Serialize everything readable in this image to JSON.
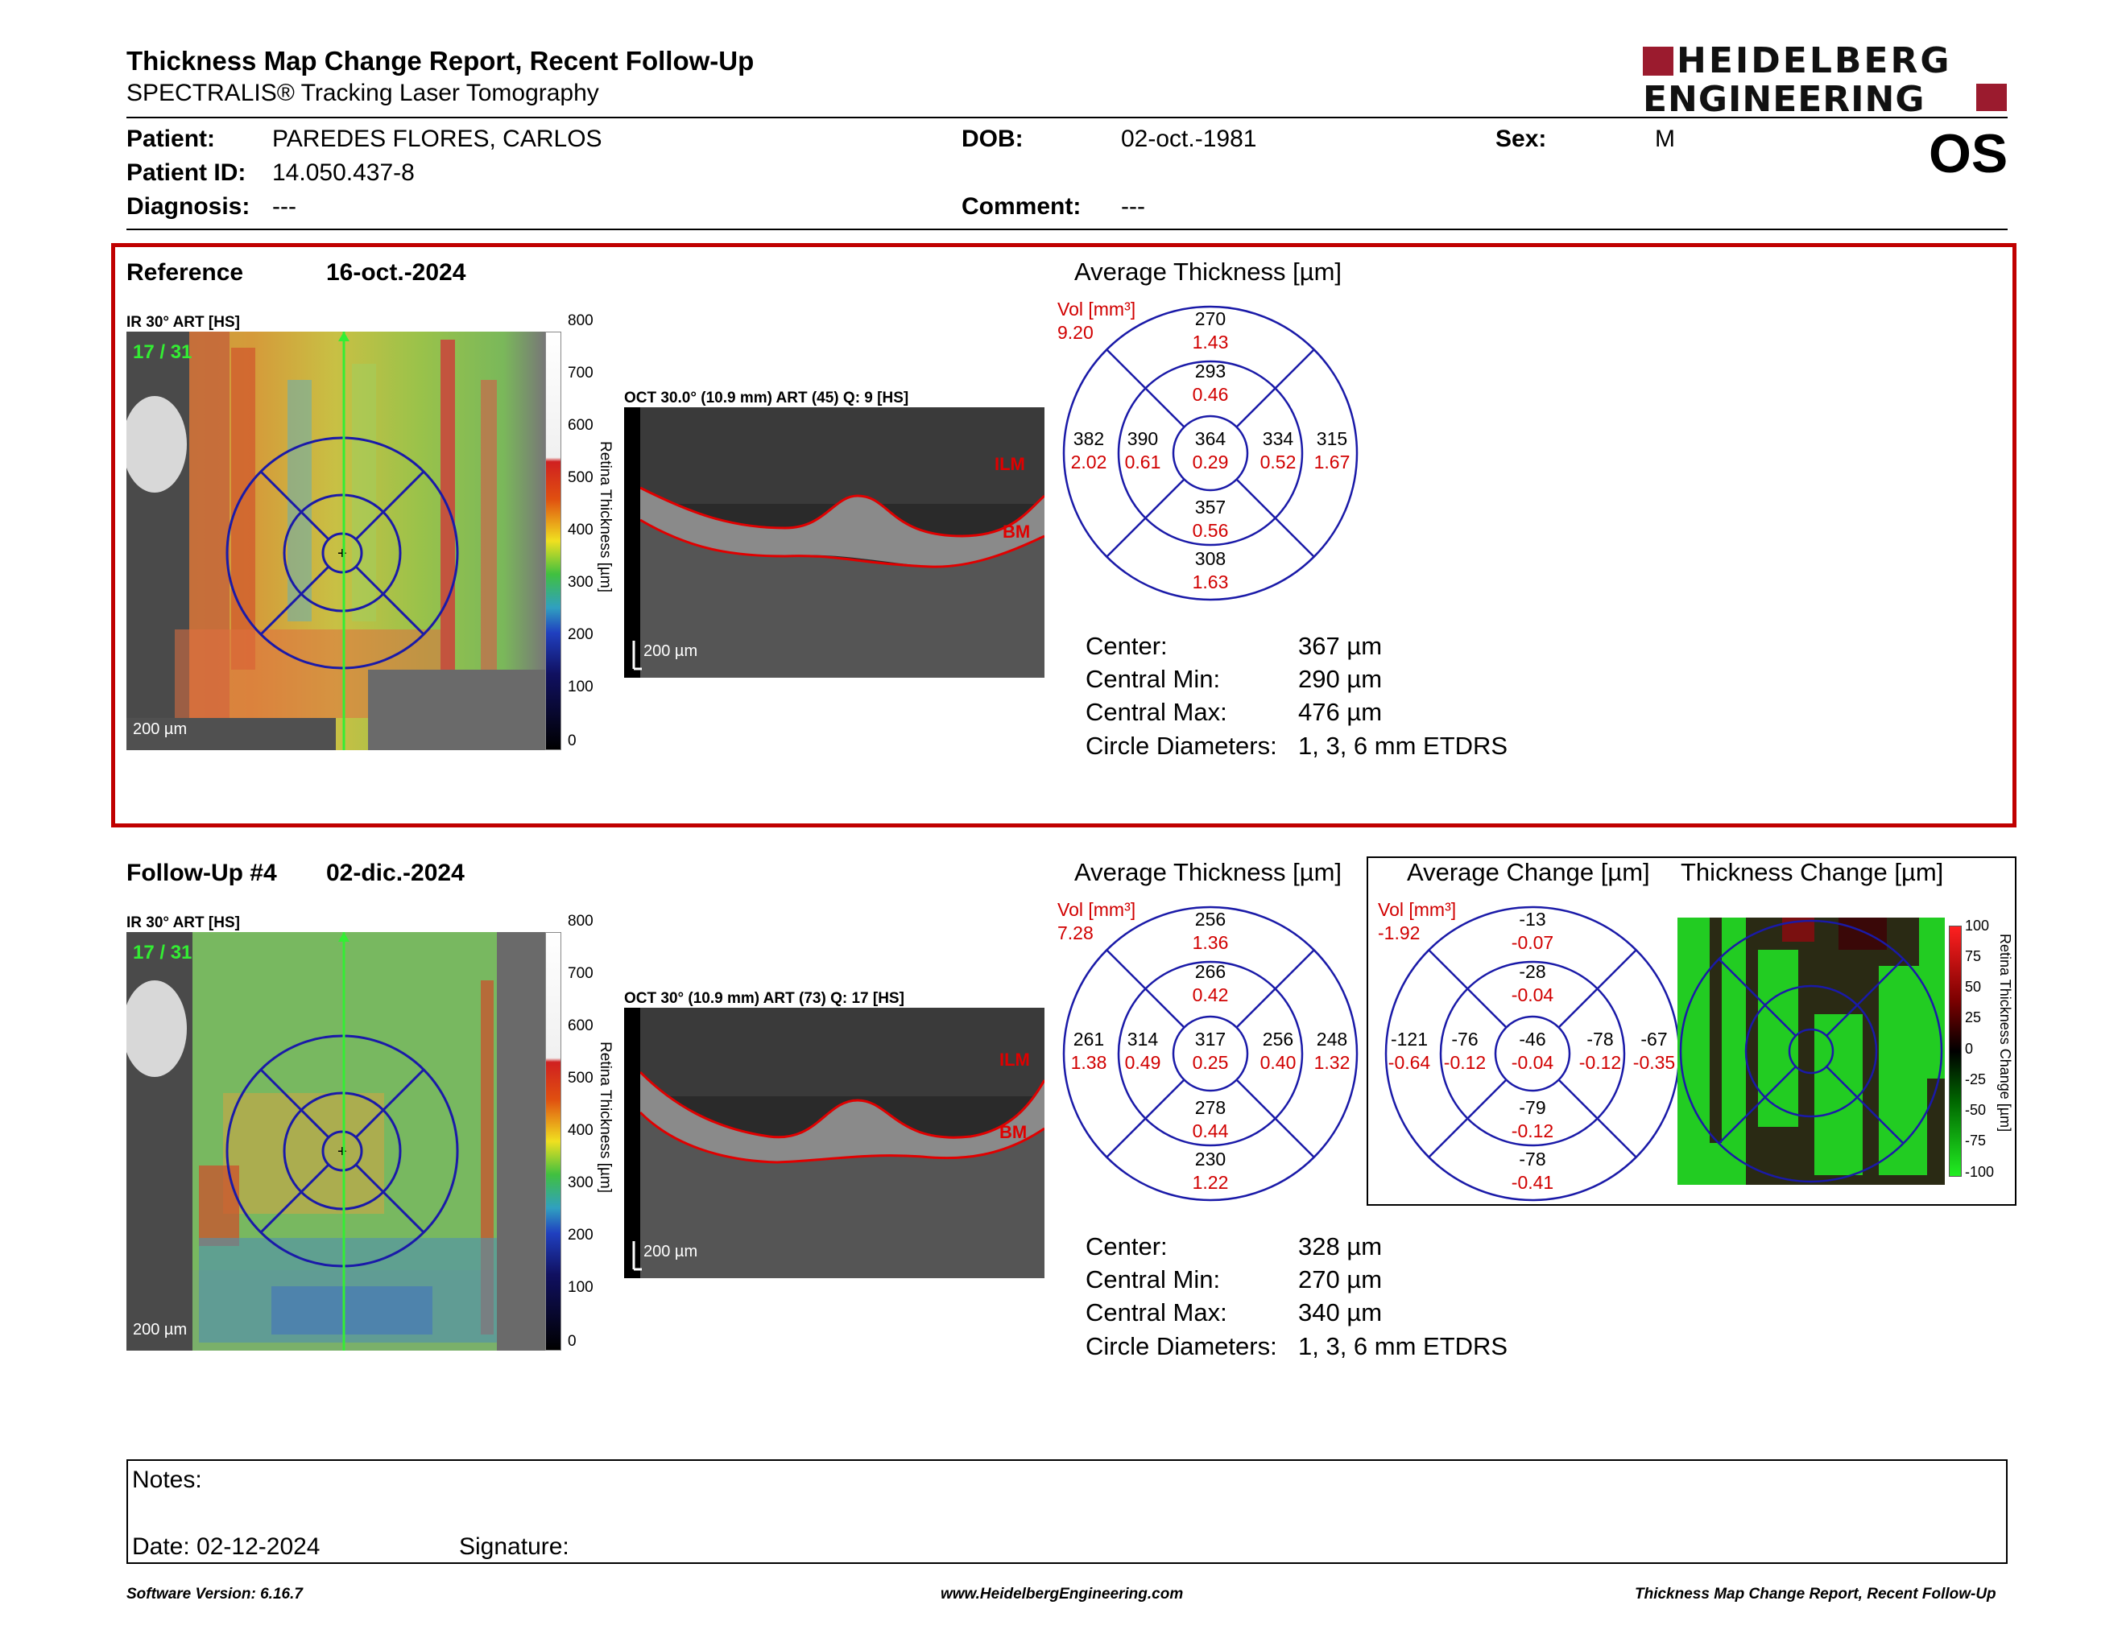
{
  "header": {
    "title": "Thickness Map Change Report, Recent Follow-Up",
    "subtitle": "SPECTRALIS® Tracking Laser Tomography",
    "logo_line1": "HEIDELBERG",
    "logo_line2": "ENGINEERING",
    "eye": "OS"
  },
  "patient": {
    "patient_label": "Patient:",
    "patient_name": "PAREDES FLORES, CARLOS",
    "id_label": "Patient ID:",
    "id_value": "14.050.437-8",
    "diagnosis_label": "Diagnosis:",
    "diagnosis_value": "---",
    "dob_label": "DOB:",
    "dob_value": "02-oct.-1981",
    "comment_label": "Comment:",
    "comment_value": "---",
    "sex_label": "Sex:",
    "sex_value": "M"
  },
  "colors": {
    "accent_red": "#c00000",
    "etdrs_blue": "#1a1aa8",
    "value_red": "#d10000",
    "logo": "#9b1b2e"
  },
  "reference": {
    "label": "Reference",
    "date": "16-oct.-2024",
    "ir_label": "IR 30° ART [HS]",
    "frame": "17 / 31",
    "scale_bar": "200 µm",
    "oct_label": "OCT 30.0° (10.9 mm) ART (45) Q: 9 [HS]",
    "oct_scale": "200 µm",
    "ilm": "ILM",
    "bm": "BM",
    "colorbar_ticks": [
      "800",
      "700",
      "600",
      "500",
      "400",
      "300",
      "200",
      "100",
      "0"
    ],
    "colorbar_title": "Retina Thickness [µm]",
    "avg_title": "Average Thickness [µm]",
    "vol_label": "Vol [mm³]",
    "vol_value": "9.20",
    "etdrs": {
      "sup_outer": [
        "270",
        "1.43"
      ],
      "sup_inner": [
        "293",
        "0.46"
      ],
      "temp_outer": [
        "382",
        "2.02"
      ],
      "temp_inner": [
        "390",
        "0.61"
      ],
      "center": [
        "364",
        "0.29"
      ],
      "nasal_inner": [
        "334",
        "0.52"
      ],
      "nasal_outer": [
        "315",
        "1.67"
      ],
      "inf_inner": [
        "357",
        "0.56"
      ],
      "inf_outer": [
        "308",
        "1.63"
      ]
    },
    "stats": {
      "center_label": "Center:",
      "center_value": "367 µm",
      "min_label": "Central Min:",
      "min_value": "290 µm",
      "max_label": "Central Max:",
      "max_value": "476 µm",
      "circ_label": "Circle Diameters:",
      "circ_value": "1, 3, 6 mm ETDRS"
    }
  },
  "followup": {
    "label": "Follow-Up #4",
    "date": "02-dic.-2024",
    "ir_label": "IR 30° ART [HS]",
    "frame": "17 / 31",
    "scale_bar": "200 µm",
    "oct_label": "OCT 30° (10.9 mm) ART (73) Q: 17 [HS]",
    "oct_scale": "200 µm",
    "ilm": "ILM",
    "bm": "BM",
    "colorbar_ticks": [
      "800",
      "700",
      "600",
      "500",
      "400",
      "300",
      "200",
      "100",
      "0"
    ],
    "colorbar_title": "Retina Thickness [µm]",
    "avg_title": "Average Thickness [µm]",
    "vol_label": "Vol [mm³]",
    "vol_value": "7.28",
    "etdrs": {
      "sup_outer": [
        "256",
        "1.36"
      ],
      "sup_inner": [
        "266",
        "0.42"
      ],
      "temp_outer": [
        "261",
        "1.38"
      ],
      "temp_inner": [
        "314",
        "0.49"
      ],
      "center": [
        "317",
        "0.25"
      ],
      "nasal_inner": [
        "256",
        "0.40"
      ],
      "nasal_outer": [
        "248",
        "1.32"
      ],
      "inf_inner": [
        "278",
        "0.44"
      ],
      "inf_outer": [
        "230",
        "1.22"
      ]
    },
    "stats": {
      "center_label": "Center:",
      "center_value": "328 µm",
      "min_label": "Central Min:",
      "min_value": "270 µm",
      "max_label": "Central Max:",
      "max_value": "340 µm",
      "circ_label": "Circle Diameters:",
      "circ_value": "1, 3, 6 mm ETDRS"
    },
    "change_title": "Average Change [µm]",
    "thick_change_title": "Thickness Change [µm]",
    "change_vol_label": "Vol [mm³]",
    "change_vol_value": "-1.92",
    "change": {
      "sup_outer": [
        "-13",
        "-0.07"
      ],
      "sup_inner": [
        "-28",
        "-0.04"
      ],
      "temp_outer": [
        "-121",
        "-0.64"
      ],
      "temp_inner": [
        "-76",
        "-0.12"
      ],
      "center": [
        "-46",
        "-0.04"
      ],
      "nasal_inner": [
        "-78",
        "-0.12"
      ],
      "nasal_outer": [
        "-67",
        "-0.35"
      ],
      "inf_inner": [
        "-79",
        "-0.12"
      ],
      "inf_outer": [
        "-78",
        "-0.41"
      ]
    },
    "change_colorbar_ticks": [
      "100",
      "75",
      "50",
      "25",
      "0",
      "-25",
      "-50",
      "-75",
      "-100"
    ],
    "change_colorbar_title": "Retina Thickness Change [µm]"
  },
  "notes": {
    "notes_label": "Notes:",
    "date_label": "Date: 02-12-2024",
    "signature_label": "Signature:"
  },
  "footer": {
    "left": "Software Version: 6.16.7",
    "center": "www.HeidelbergEngineering.com",
    "right": "Thickness Map Change Report, Recent Follow-Up"
  }
}
